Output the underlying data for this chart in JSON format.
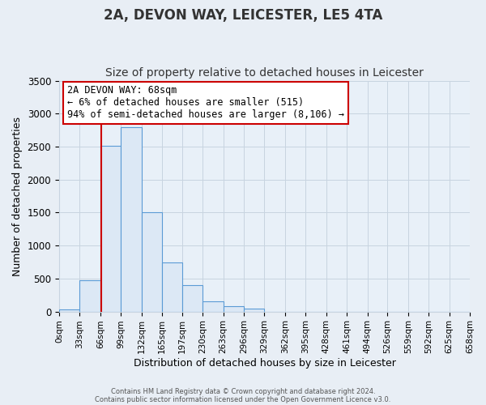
{
  "title": "2A, DEVON WAY, LEICESTER, LE5 4TA",
  "subtitle": "Size of property relative to detached houses in Leicester",
  "xlabel": "Distribution of detached houses by size in Leicester",
  "ylabel": "Number of detached properties",
  "bar_edges": [
    0,
    33,
    66,
    99,
    132,
    165,
    197,
    230,
    263,
    296,
    329,
    362,
    395,
    428,
    461,
    494,
    526,
    559,
    592,
    625,
    658
  ],
  "bar_heights": [
    30,
    470,
    2510,
    2800,
    1510,
    740,
    400,
    150,
    80,
    50,
    0,
    0,
    0,
    0,
    0,
    0,
    0,
    0,
    0,
    0
  ],
  "bar_color": "#dce8f5",
  "bar_edgecolor": "#5b9bd5",
  "vline_x": 68,
  "vline_color": "#cc0000",
  "ylim": [
    0,
    3500
  ],
  "xlim": [
    0,
    658
  ],
  "tick_labels": [
    "0sqm",
    "33sqm",
    "66sqm",
    "99sqm",
    "132sqm",
    "165sqm",
    "197sqm",
    "230sqm",
    "263sqm",
    "296sqm",
    "329sqm",
    "362sqm",
    "395sqm",
    "428sqm",
    "461sqm",
    "494sqm",
    "526sqm",
    "559sqm",
    "592sqm",
    "625sqm",
    "658sqm"
  ],
  "yticks": [
    0,
    500,
    1000,
    1500,
    2000,
    2500,
    3000,
    3500
  ],
  "annotation_title": "2A DEVON WAY: 68sqm",
  "annotation_line1": "← 6% of detached houses are smaller (515)",
  "annotation_line2": "94% of semi-detached houses are larger (8,106) →",
  "annotation_box_color": "#ffffff",
  "annotation_box_edgecolor": "#cc0000",
  "footer_line1": "Contains HM Land Registry data © Crown copyright and database right 2024.",
  "footer_line2": "Contains public sector information licensed under the Open Government Licence v3.0.",
  "bg_color": "#e8eef5",
  "plot_bg_color": "#e8f0f8",
  "grid_color": "#c8d4e0",
  "title_fontsize": 12,
  "subtitle_fontsize": 10,
  "ylabel_fontsize": 9,
  "xlabel_fontsize": 9,
  "tick_fontsize": 7.5,
  "ytick_fontsize": 8.5,
  "annotation_fontsize": 8.5
}
